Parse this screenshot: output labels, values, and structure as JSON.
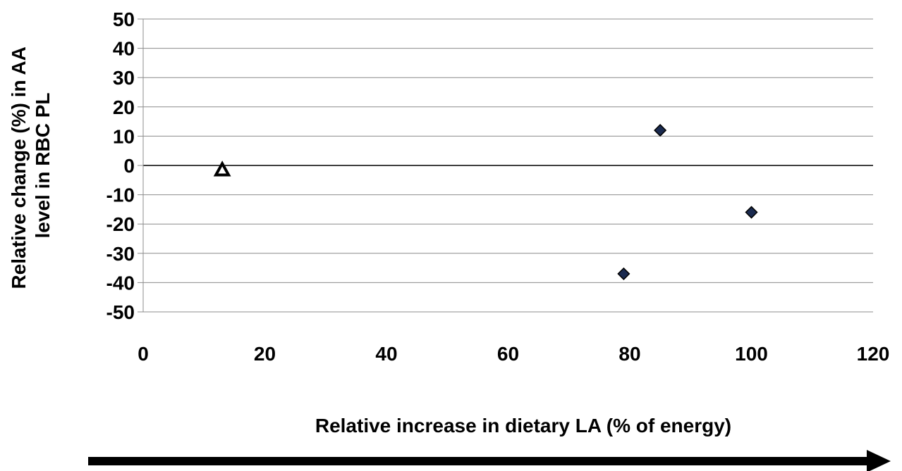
{
  "chart_data": {
    "type": "scatter",
    "xlabel": "Relative increase in dietary LA (% of energy)",
    "ylabel_lines": [
      "Relative change (%) in AA",
      "level in RBC PL"
    ],
    "xlim": [
      0,
      120
    ],
    "ylim": [
      -50,
      50
    ],
    "x_ticks": [
      0,
      20,
      40,
      60,
      80,
      100,
      120
    ],
    "y_ticks": [
      50,
      40,
      30,
      20,
      10,
      0,
      -10,
      -20,
      -30,
      -40,
      -50
    ],
    "grid": "horizontal",
    "series": [
      {
        "marker": "diamond",
        "color": "#1a2a4f",
        "points": [
          {
            "x": 79,
            "y": -37
          },
          {
            "x": 85,
            "y": 12
          },
          {
            "x": 100,
            "y": -16
          }
        ]
      },
      {
        "marker": "triangle-open",
        "color": "#000000",
        "points": [
          {
            "x": 13,
            "y": -1.5
          }
        ]
      }
    ],
    "arrow_direction": "right"
  }
}
